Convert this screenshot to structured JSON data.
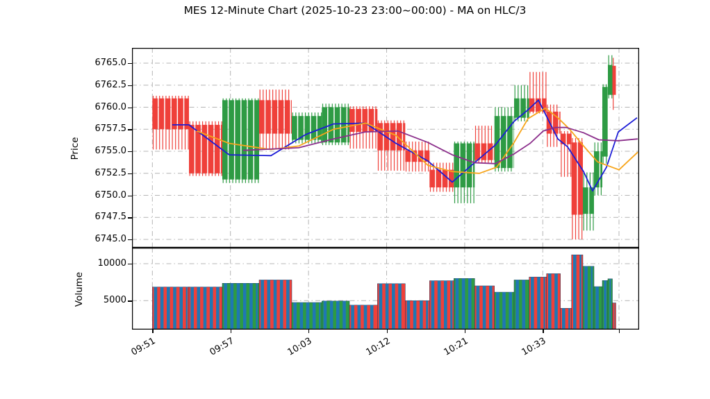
{
  "title": "MES 12-Minute Chart (2025-10-23 23:00~00:00) - MA on HLC/3",
  "price_axis": {
    "label": "Price",
    "ticks": [
      6765.0,
      6762.5,
      6760.0,
      6757.5,
      6755.0,
      6752.5,
      6750.0,
      6747.5,
      6745.0
    ]
  },
  "volume_axis": {
    "label": "Volume",
    "ticks": [
      10000,
      5000
    ]
  },
  "x_axis": {
    "tick_labels": [
      "09:51",
      "09:57",
      "10:03",
      "10:12",
      "10:21",
      "10:33"
    ],
    "gridline_x": [
      219.3,
      331.7,
      444.1,
      556.5,
      668.9,
      781.3,
      891.0
    ]
  },
  "chart_data": {
    "type": "ohlc-candlestick-with-volume",
    "title": "MES 12-Minute Chart (2025-10-23 23:00~00:00) - MA on HLC/3",
    "ylabel_price": "Price",
    "ylabel_volume": "Volume",
    "price_ylim": [
      6744.1,
      6766.7
    ],
    "volume_ylim": [
      1100,
      12050
    ],
    "grid": "dash-dot gray, both panels",
    "colors": {
      "up": "#2e9b44",
      "down": "#ef403a",
      "volume_stripe": "#1f77b4",
      "ma_fast": "#1b1bd6",
      "ma_mid": "#f7a51b",
      "ma_slow": "#8b2e8b",
      "grid": "#b4b4b4",
      "spine": "#000000"
    },
    "candles": [
      {
        "x0": 219.3,
        "x1": 272.0,
        "open": 6761.0,
        "high": 6761.3,
        "low": 6755.2,
        "close": 6757.5,
        "volume": 6850
      },
      {
        "x0": 272.0,
        "x1": 320.0,
        "open": 6758.0,
        "high": 6758.4,
        "low": 6752.2,
        "close": 6752.5,
        "volume": 6850
      },
      {
        "x0": 320.0,
        "x1": 373.0,
        "open": 6751.8,
        "high": 6761.0,
        "low": 6751.4,
        "close": 6760.8,
        "volume": 7350
      },
      {
        "x0": 373.0,
        "x1": 420.0,
        "open": 6760.8,
        "high": 6762.0,
        "low": 6755.2,
        "close": 6757.0,
        "volume": 7800
      },
      {
        "x0": 420.0,
        "x1": 463.3,
        "open": 6756.3,
        "high": 6759.4,
        "low": 6755.9,
        "close": 6759.0,
        "volume": 4750
      },
      {
        "x0": 463.3,
        "x1": 503.0,
        "open": 6756.0,
        "high": 6760.4,
        "low": 6755.7,
        "close": 6760.0,
        "volume": 4950
      },
      {
        "x0": 503.0,
        "x1": 543.3,
        "open": 6759.8,
        "high": 6760.1,
        "low": 6755.3,
        "close": 6757.2,
        "volume": 4400
      },
      {
        "x0": 543.3,
        "x1": 583.3,
        "open": 6758.2,
        "high": 6758.5,
        "low": 6752.8,
        "close": 6755.1,
        "volume": 7300
      },
      {
        "x0": 583.3,
        "x1": 618.3,
        "open": 6755.1,
        "high": 6756.1,
        "low": 6752.7,
        "close": 6753.8,
        "volume": 5000
      },
      {
        "x0": 618.3,
        "x1": 653.3,
        "open": 6752.9,
        "high": 6753.7,
        "low": 6750.4,
        "close": 6750.9,
        "volume": 7700
      },
      {
        "x0": 653.3,
        "x1": 683.3,
        "open": 6750.9,
        "high": 6756.1,
        "low": 6749.1,
        "close": 6755.9,
        "volume": 8000
      },
      {
        "x0": 683.3,
        "x1": 711.7,
        "open": 6755.9,
        "high": 6757.9,
        "low": 6753.7,
        "close": 6754.0,
        "volume": 7000
      },
      {
        "x0": 711.7,
        "x1": 740.0,
        "open": 6753.1,
        "high": 6760.0,
        "low": 6752.7,
        "close": 6759.0,
        "volume": 6150
      },
      {
        "x0": 740.0,
        "x1": 761.7,
        "open": 6758.8,
        "high": 6762.5,
        "low": 6758.4,
        "close": 6761.0,
        "volume": 7800
      },
      {
        "x0": 761.7,
        "x1": 786.7,
        "open": 6761.0,
        "high": 6764.0,
        "low": 6759.3,
        "close": 6759.5,
        "volume": 8200
      },
      {
        "x0": 786.7,
        "x1": 806.7,
        "open": 6759.5,
        "high": 6760.3,
        "low": 6755.5,
        "close": 6757.0,
        "volume": 8650
      },
      {
        "x0": 806.7,
        "x1": 822.7,
        "open": 6757.0,
        "high": 6757.3,
        "low": 6752.1,
        "close": 6755.8,
        "volume": 3975
      },
      {
        "x0": 822.7,
        "x1": 839.0,
        "open": 6756.0,
        "high": 6756.5,
        "low": 6745.0,
        "close": 6747.8,
        "volume": 11200
      },
      {
        "x0": 839.0,
        "x1": 855.0,
        "open": 6747.9,
        "high": 6752.6,
        "low": 6746.0,
        "close": 6750.9,
        "volume": 9650
      },
      {
        "x0": 855.0,
        "x1": 867.0,
        "open": 6750.9,
        "high": 6756.0,
        "low": 6750.0,
        "close": 6755.0,
        "volume": 6900
      },
      {
        "x0": 867.0,
        "x1": 875.0,
        "open": 6754.4,
        "high": 6762.6,
        "low": 6753.6,
        "close": 6762.3,
        "volume": 7725
      },
      {
        "x0": 875.0,
        "x1": 881.5,
        "open": 6761.4,
        "high": 6765.9,
        "low": 6761.0,
        "close": 6764.8,
        "volume": 7950
      },
      {
        "x0": 881.5,
        "x1": 886.5,
        "open": 6764.7,
        "high": 6765.6,
        "low": 6759.7,
        "close": 6761.4,
        "volume": 4700
      }
    ],
    "ma_lines": [
      {
        "name": "MA fast (blue)",
        "color": "#1b1bd6",
        "points": [
          [
            248,
            6758.0
          ],
          [
            272,
            6758.0
          ],
          [
            330,
            6754.6
          ],
          [
            390,
            6754.5
          ],
          [
            440,
            6756.9
          ],
          [
            480,
            6758.1
          ],
          [
            526,
            6758.2
          ],
          [
            570,
            6755.9
          ],
          [
            616,
            6753.9
          ],
          [
            651,
            6751.5
          ],
          [
            683,
            6753.7
          ],
          [
            713,
            6755.7
          ],
          [
            740,
            6758.4
          ],
          [
            760,
            6759.7
          ],
          [
            775,
            6760.8
          ],
          [
            803,
            6756.4
          ],
          [
            817,
            6755.5
          ],
          [
            840,
            6752.7
          ],
          [
            853,
            6750.5
          ],
          [
            873,
            6753.2
          ],
          [
            890,
            6757.2
          ],
          [
            917,
            6758.8
          ]
        ]
      },
      {
        "name": "MA mid (orange)",
        "color": "#f7a51b",
        "points": [
          [
            283,
            6757.3
          ],
          [
            330,
            6755.9
          ],
          [
            390,
            6755.2
          ],
          [
            430,
            6755.6
          ],
          [
            480,
            6757.5
          ],
          [
            526,
            6758.2
          ],
          [
            570,
            6756.8
          ],
          [
            616,
            6753.4
          ],
          [
            651,
            6752.7
          ],
          [
            690,
            6752.5
          ],
          [
            715,
            6753.2
          ],
          [
            740,
            6756.0
          ],
          [
            760,
            6758.7
          ],
          [
            785,
            6759.9
          ],
          [
            803,
            6758.8
          ],
          [
            820,
            6757.5
          ],
          [
            840,
            6755.6
          ],
          [
            860,
            6753.8
          ],
          [
            891,
            6752.9
          ],
          [
            918,
            6754.9
          ]
        ]
      },
      {
        "name": "MA slow (purple)",
        "color": "#8b2e8b",
        "points": [
          [
            350,
            6755.1
          ],
          [
            430,
            6755.4
          ],
          [
            480,
            6756.4
          ],
          [
            526,
            6757.2
          ],
          [
            573,
            6757.3
          ],
          [
            616,
            6756.0
          ],
          [
            651,
            6754.6
          ],
          [
            683,
            6753.7
          ],
          [
            713,
            6753.6
          ],
          [
            740,
            6754.7
          ],
          [
            763,
            6755.9
          ],
          [
            782,
            6757.3
          ],
          [
            800,
            6757.7
          ],
          [
            815,
            6757.7
          ],
          [
            840,
            6757.1
          ],
          [
            862,
            6756.3
          ],
          [
            890,
            6756.2
          ],
          [
            918,
            6756.4
          ]
        ]
      }
    ]
  }
}
